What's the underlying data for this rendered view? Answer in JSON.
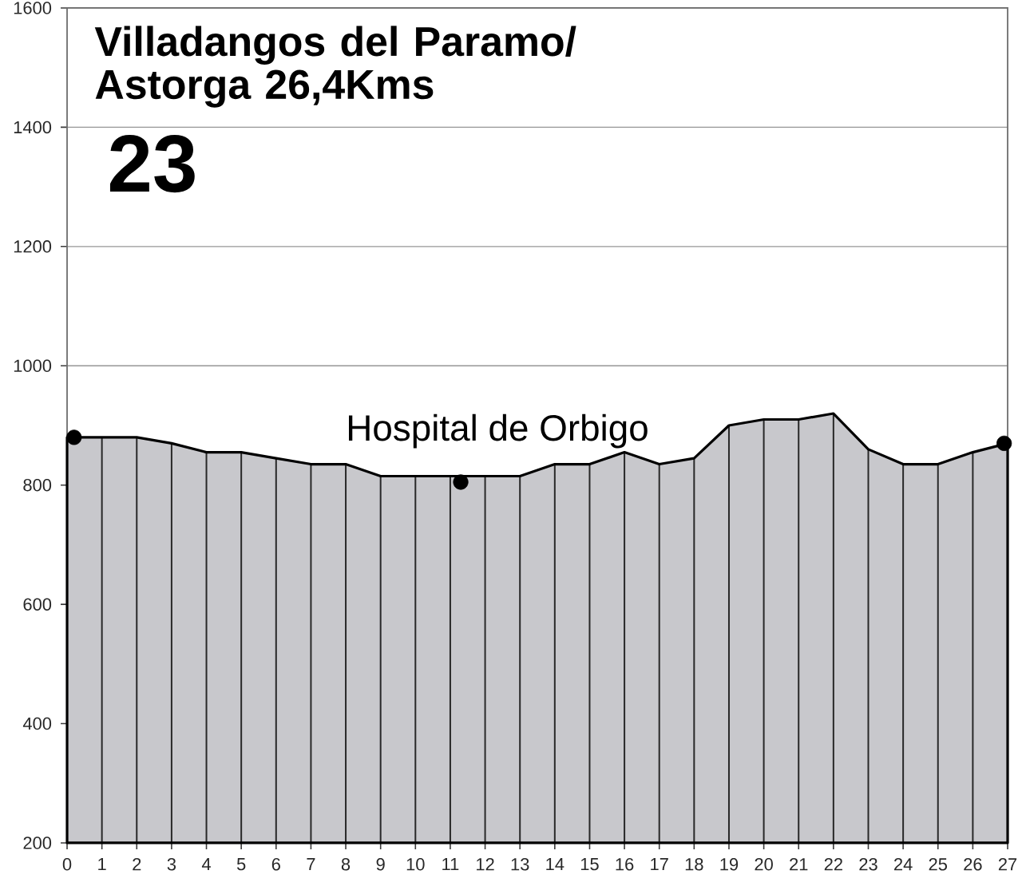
{
  "chart_data": {
    "type": "area",
    "title": "Villadangos del Paramo/ Astorga 26,4Kms",
    "subtitle": "23",
    "xlim": [
      0,
      27
    ],
    "ylim": [
      200,
      1600
    ],
    "xticks": [
      0,
      1,
      2,
      3,
      4,
      5,
      6,
      7,
      8,
      9,
      10,
      11,
      12,
      13,
      14,
      15,
      16,
      17,
      18,
      19,
      20,
      21,
      22,
      23,
      24,
      25,
      26,
      27
    ],
    "yticks": [
      200,
      400,
      600,
      800,
      1000,
      1200,
      1400,
      1600
    ],
    "grid": true,
    "annotations": [
      {
        "text": "Hospital de Orbigo",
        "x": 11.3,
        "y": 805
      }
    ],
    "series": [
      {
        "color": "#c8c8cc",
        "x": [
          0,
          1,
          2,
          3,
          4,
          5,
          6,
          7,
          8,
          9,
          10,
          11,
          12,
          13,
          14,
          15,
          16,
          17,
          18,
          19,
          20,
          21,
          22,
          23,
          24,
          25,
          26,
          27
        ],
        "values": [
          880,
          880,
          880,
          870,
          855,
          855,
          845,
          835,
          835,
          815,
          815,
          815,
          815,
          815,
          835,
          835,
          855,
          835,
          845,
          900,
          910,
          910,
          920,
          860,
          835,
          835,
          855,
          870
        ]
      },
      {
        "type": "scatter",
        "color": "#000000",
        "marker": "circle",
        "x": [
          0.2,
          11.3,
          26.9
        ],
        "values": [
          880,
          805,
          870
        ]
      }
    ]
  }
}
